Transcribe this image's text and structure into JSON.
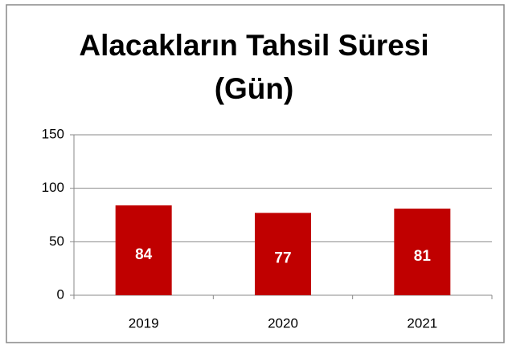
{
  "chart_data": {
    "type": "bar",
    "title": "Alacakların Tahsil Süresi (Gün)",
    "categories": [
      "2019",
      "2020",
      "2021"
    ],
    "values": [
      84,
      77,
      81
    ],
    "color": "#c00000",
    "ylim": [
      0,
      150
    ],
    "yticks": [
      0,
      50,
      100,
      150
    ],
    "grid": true
  }
}
